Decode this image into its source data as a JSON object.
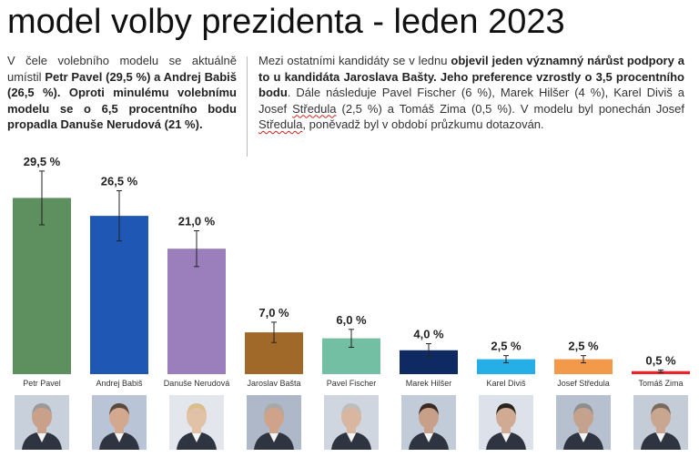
{
  "title": "model volby prezidenta - leden 2023",
  "text_left": {
    "p1": "V čele volebního modelu se aktuálně umístil ",
    "b1": "Petr Pavel (29,5 %) a Andrej Babiš (26,5 %). Oproti minulému volebnímu modelu se o 6,5 procentního bodu propadla Danuše Nerudová (21 %)."
  },
  "text_right": {
    "p1": "Mezi ostatními kandidáty se v lednu ",
    "b1": "objevil jeden významný nárůst podpory a to u kandidáta Jaroslava Bašty. Jeho preference vzrostly o 3,5 procentního bodu",
    "p2": ". Dále následuje Pavel Fischer (6 %), Marek Hilšer (4 %), Karel Diviš a Josef ",
    "s1": "Středula",
    "p3": " (2,5 %) a Tomáš Zima (0,5 %). V modelu byl ponechán Josef ",
    "s2": "Středula",
    "p4": ", poněvadž byl v období průzkumu dotazován."
  },
  "chart_data": {
    "type": "bar",
    "categories": [
      "Petr Pavel",
      "Andrej Babiš",
      "Danuše Nerudová",
      "Jaroslav Bašta",
      "Pavel Fischer",
      "Marek Hilšer",
      "Karel Diviš",
      "Josef Středula",
      "Tomáš Zima"
    ],
    "values": [
      29.5,
      26.5,
      21.0,
      7.0,
      6.0,
      4.0,
      2.5,
      2.5,
      0.5
    ],
    "value_labels": [
      "29,5 %",
      "26,5 %",
      "21,0 %",
      "7,0 %",
      "6,0 %",
      "4,0 %",
      "2,5 %",
      "2,5 %",
      "0,5 %"
    ],
    "error": [
      4.5,
      4.2,
      3.0,
      1.7,
      1.5,
      1.1,
      0.6,
      0.6,
      0.2
    ],
    "colors": [
      "#5e8f5e",
      "#1f57b5",
      "#9b7fbc",
      "#a0692a",
      "#72bfa3",
      "#0f2a62",
      "#26aee6",
      "#f2994a",
      "#e8232a"
    ],
    "ylim": [
      0,
      32
    ],
    "grid": false,
    "legend": "none"
  },
  "avatar_icons": [
    "person-photo",
    "person-photo",
    "person-photo",
    "person-photo",
    "person-photo",
    "person-photo",
    "person-photo",
    "person-photo",
    "person-photo"
  ]
}
